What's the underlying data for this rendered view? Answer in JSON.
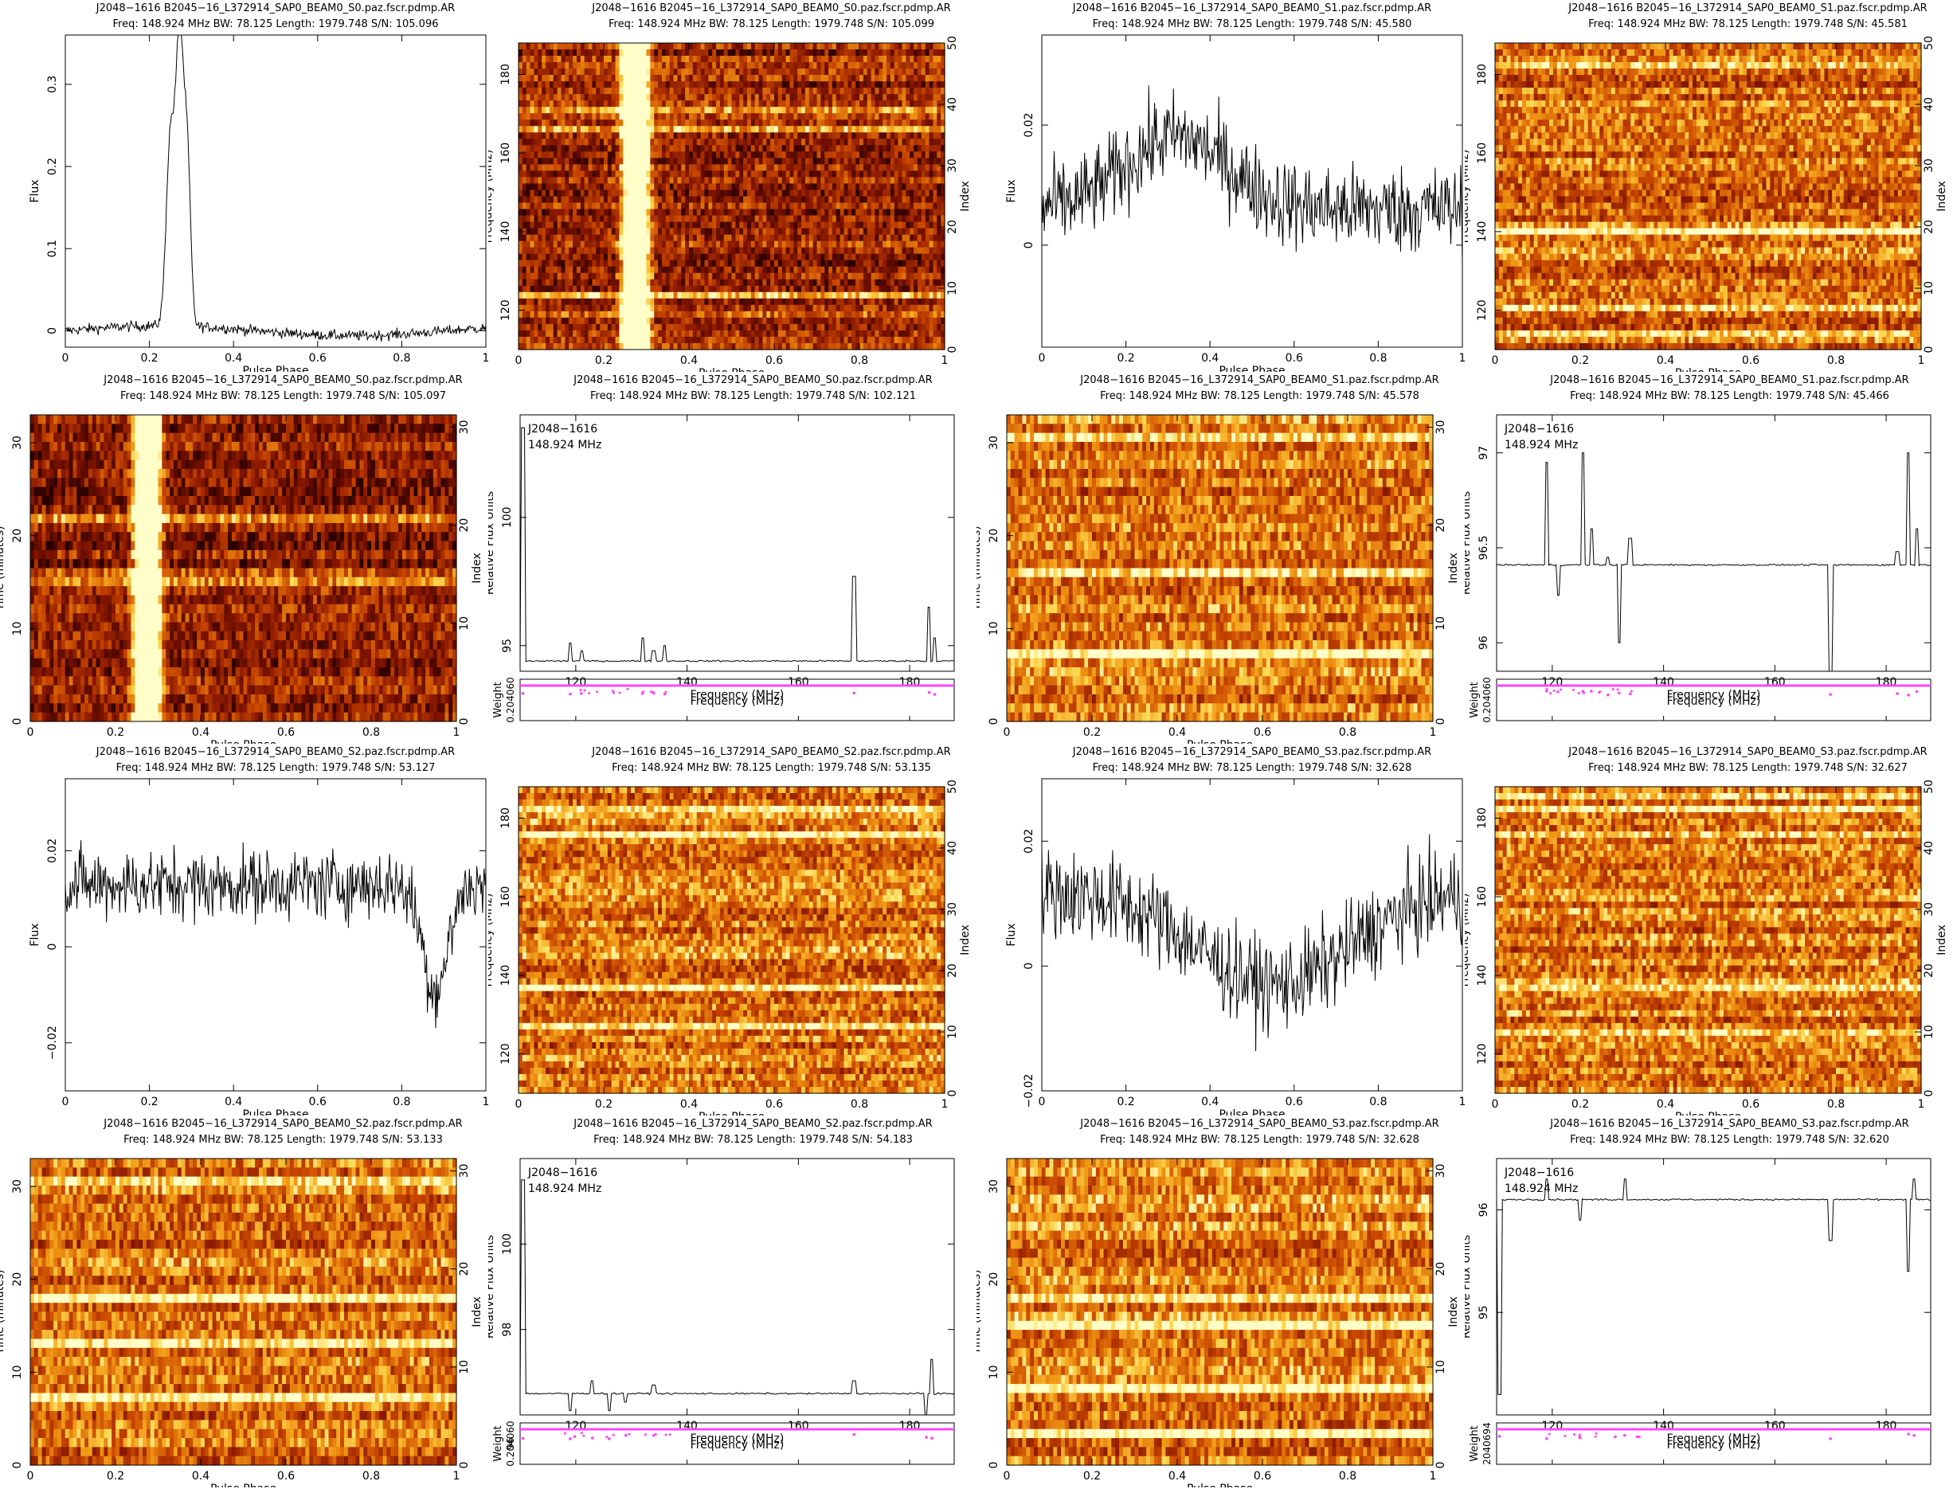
{
  "figure": {
    "source": "J2048-1616",
    "file_prefix": "B2045-16_L372914_SAP0_BEAM0",
    "freq_line": "Freq: 148.924 MHz BW: 78.125 Length: 1979.748"
  },
  "colors": {
    "line": "#000000",
    "weight_points": "#ff44ff",
    "heat_low": "#2a0000",
    "heat_mid": "#d8540a",
    "heat_high": "#fffdc0"
  },
  "chart_data": [
    {
      "id": "s0-profile",
      "type": "line",
      "title": "J2048−1616 B2045−16_L372914_SAP0_BEAM0_S0.paz.fscr.pdmp.AR",
      "subtitle": "Freq: 148.924 MHz BW: 78.125 Length: 1979.748 S/N: 105.096",
      "xlabel": "Pulse Phase",
      "ylabel": "Flux",
      "xlim": [
        0,
        1
      ],
      "ylim": [
        -0.02,
        0.36
      ],
      "xticks": [
        "0",
        "0.2",
        "0.4",
        "0.6",
        "0.8",
        "1"
      ],
      "yticks": [
        "0",
        "0.1",
        "0.2",
        "0.3"
      ],
      "profile": {
        "baseline": 0.0,
        "noise": 0.006,
        "components": [
          {
            "center": 0.25,
            "width": 0.01,
            "amp": 0.23
          },
          {
            "center": 0.272,
            "width": 0.009,
            "amp": 0.34
          },
          {
            "center": 0.29,
            "width": 0.008,
            "amp": 0.2
          }
        ]
      }
    },
    {
      "id": "s0-freq",
      "type": "heatmap",
      "title": "J2048−1616 B2045−16_L372914_SAP0_BEAM0_S0.paz.fscr.pdmp.AR",
      "subtitle": "Freq: 148.924 MHz BW: 78.125 Length: 1979.748 S/N: 105.099",
      "xlabel": "Pulse Phase",
      "ylabel": "Frequency (MHz)",
      "y2label": "Index",
      "xlim": [
        0,
        1
      ],
      "ylim": [
        110,
        188
      ],
      "xticks": [
        "0",
        "0.2",
        "0.4",
        "0.6",
        "0.8",
        "1"
      ],
      "yticks": [
        "120",
        "140",
        "160",
        "180"
      ],
      "y2ticks": [
        "0",
        "10",
        "20",
        "30",
        "40",
        "50"
      ],
      "pulse": {
        "phases": [
          0.25,
          0.272,
          0.29
        ],
        "width": 0.012
      },
      "bright_rows_fraction": [
        0.1,
        0.18,
        0.73,
        0.78
      ],
      "base_level": 0.35
    },
    {
      "id": "s1-profile",
      "type": "line",
      "title": "J2048−1616 B2045−16_L372914_SAP0_BEAM0_S1.paz.fscr.pdmp.AR",
      "subtitle": "Freq: 148.924 MHz BW: 78.125 Length: 1979.748 S/N: 45.580",
      "xlabel": "Pulse Phase",
      "ylabel": "Flux",
      "xlim": [
        0,
        1
      ],
      "ylim": [
        -0.017,
        0.035
      ],
      "xticks": [
        "0",
        "0.2",
        "0.4",
        "0.6",
        "0.8",
        "1"
      ],
      "yticks": [
        "0",
        "0.02"
      ],
      "profile": {
        "baseline": 0.006,
        "noise": 0.007,
        "components": [
          {
            "center": 0.32,
            "width": 0.12,
            "amp": 0.012
          }
        ]
      }
    },
    {
      "id": "s1-freq",
      "type": "heatmap",
      "title": "J2048−1616 B2045−16_L372914_SAP0_BEAM0_S1.paz.fscr.pdmp.AR",
      "subtitle": "Freq: 148.924 MHz BW: 78.125 Length: 1979.748 S/N: 45.581",
      "xlabel": "Pulse Phase",
      "ylabel": "Frequency (MHz)",
      "y2label": "Index",
      "xlim": [
        0,
        1
      ],
      "ylim": [
        110,
        188
      ],
      "xticks": [
        "0",
        "0.2",
        "0.4",
        "0.6",
        "0.8",
        "1"
      ],
      "yticks": [
        "120",
        "140",
        "160",
        "180"
      ],
      "y2ticks": [
        "0",
        "10",
        "20",
        "30",
        "40",
        "50"
      ],
      "pulse": {
        "phases": [],
        "width": 0.01
      },
      "bright_rows_fraction": [
        0.05,
        0.12,
        0.38,
        0.93
      ],
      "base_level": 0.6
    },
    {
      "id": "s0-time",
      "type": "heatmap",
      "title": "J2048−1616 B2045−16_L372914_SAP0_BEAM0_S0.paz.fscr.pdmp.AR",
      "subtitle": "Freq: 148.924 MHz BW: 78.125 Length: 1979.748 S/N: 105.097",
      "xlabel": "Pulse Phase",
      "ylabel": "Time (minutes)",
      "y2label": "Index",
      "xlim": [
        0,
        1
      ],
      "ylim": [
        0,
        33
      ],
      "xticks": [
        "0",
        "0.2",
        "0.4",
        "0.6",
        "0.8",
        "1"
      ],
      "yticks": [
        "0",
        "10",
        "20",
        "30"
      ],
      "y2ticks": [
        "0",
        "10",
        "20",
        "30"
      ],
      "pulse": {
        "phases": [
          0.25,
          0.272,
          0.29
        ],
        "width": 0.012
      },
      "bright_rows_fraction": [
        0.45,
        0.49,
        0.67
      ],
      "base_level": 0.3
    },
    {
      "id": "s0-bandpass",
      "type": "line",
      "title": "J2048−1616 B2045−16_L372914_SAP0_BEAM0_S0.paz.fscr.pdmp.AR",
      "subtitle": "Freq: 148.924 MHz BW: 78.125 Length: 1979.748 S/N: 102.121",
      "xlabel": "Frequency (MHz)",
      "ylabel": "Relative Flux Units",
      "weight_label": "Weight",
      "weight_ticks": [
        "0.204060"
      ],
      "annotation": [
        "J2048−1616",
        "148.924 MHz"
      ],
      "xlim": [
        110,
        188
      ],
      "ylim": [
        94,
        104
      ],
      "xticks": [
        "120",
        "140",
        "160",
        "180"
      ],
      "yticks": [
        "95",
        "100"
      ],
      "bandpass": {
        "baseline": 94.4,
        "spikes": [
          {
            "x": 110.5,
            "y": 103.5
          },
          {
            "x": 119,
            "y": 95.1
          },
          {
            "x": 121,
            "y": 94.8
          },
          {
            "x": 132,
            "y": 95.3
          },
          {
            "x": 134,
            "y": 94.8
          },
          {
            "x": 136,
            "y": 95.0
          },
          {
            "x": 170,
            "y": 97.7
          },
          {
            "x": 183.5,
            "y": 96.5
          },
          {
            "x": 184.5,
            "y": 95.3
          }
        ]
      }
    },
    {
      "id": "s1-time",
      "type": "heatmap",
      "title": "J2048−1616 B2045−16_L372914_SAP0_BEAM0_S1.paz.fscr.pdmp.AR",
      "subtitle": "Freq: 148.924 MHz BW: 78.125 Length: 1979.748 S/N: 45.578",
      "xlabel": "Pulse Phase",
      "ylabel": "Time (minutes)",
      "y2label": "Index",
      "xlim": [
        0,
        1
      ],
      "ylim": [
        0,
        33
      ],
      "xticks": [
        "0",
        "0.2",
        "0.4",
        "0.6",
        "0.8",
        "1"
      ],
      "yticks": [
        "0",
        "10",
        "20",
        "30"
      ],
      "y2ticks": [
        "0",
        "10",
        "20",
        "30"
      ],
      "pulse": {
        "phases": [],
        "width": 0.01
      },
      "bright_rows_fraction": [
        0.2,
        0.5,
        0.93
      ],
      "base_level": 0.62
    },
    {
      "id": "s1-bandpass",
      "type": "line",
      "title": "J2048−1616 B2045−16_L372914_SAP0_BEAM0_S1.paz.fscr.pdmp.AR",
      "subtitle": "Freq: 148.924 MHz BW: 78.125 Length: 1979.748 S/N: 45.466",
      "xlabel": "Frequency (MHz)",
      "ylabel": "Relative Flux Units",
      "weight_label": "Weight",
      "weight_ticks": [
        "0.204060"
      ],
      "annotation": [
        "J2048−1616",
        "148.924 MHz"
      ],
      "xlim": [
        110,
        188
      ],
      "ylim": [
        95.85,
        97.2
      ],
      "xticks": [
        "120",
        "140",
        "160",
        "180"
      ],
      "yticks": [
        "96",
        "96.5",
        "97"
      ],
      "bandpass": {
        "baseline": 96.41,
        "spikes": [
          {
            "x": 119,
            "y": 96.95
          },
          {
            "x": 121,
            "y": 96.25
          },
          {
            "x": 125.5,
            "y": 97.0
          },
          {
            "x": 127,
            "y": 96.6
          },
          {
            "x": 130,
            "y": 96.45
          },
          {
            "x": 132,
            "y": 96.0
          },
          {
            "x": 134,
            "y": 96.55
          },
          {
            "x": 170,
            "y": 95.85
          },
          {
            "x": 182,
            "y": 96.48
          },
          {
            "x": 184,
            "y": 97.0
          },
          {
            "x": 185.5,
            "y": 96.6
          }
        ]
      }
    },
    {
      "id": "s2-profile",
      "type": "line",
      "title": "J2048−1616 B2045−16_L372914_SAP0_BEAM0_S2.paz.fscr.pdmp.AR",
      "subtitle": "Freq: 148.924 MHz BW: 78.125 Length: 1979.748 S/N: 53.127",
      "xlabel": "Pulse Phase",
      "ylabel": "Flux",
      "xlim": [
        0,
        1
      ],
      "ylim": [
        -0.03,
        0.035
      ],
      "xticks": [
        "0",
        "0.2",
        "0.4",
        "0.6",
        "0.8",
        "1"
      ],
      "yticks": [
        "−0.02",
        "0",
        "0.02"
      ],
      "profile": {
        "baseline": 0.013,
        "noise": 0.007,
        "components": [
          {
            "center": 0.88,
            "width": 0.03,
            "amp": -0.022
          }
        ]
      }
    },
    {
      "id": "s2-freq",
      "type": "heatmap",
      "title": "J2048−1616 B2045−16_L372914_SAP0_BEAM0_S2.paz.fscr.pdmp.AR",
      "subtitle": "Freq: 148.924 MHz BW: 78.125 Length: 1979.748 S/N: 53.135",
      "xlabel": "Pulse Phase",
      "ylabel": "Frequency (MHz)",
      "y2label": "Index",
      "xlim": [
        0,
        1
      ],
      "ylim": [
        110,
        188
      ],
      "xticks": [
        "0",
        "0.2",
        "0.4",
        "0.6",
        "0.8",
        "1"
      ],
      "yticks": [
        "120",
        "140",
        "160",
        "180"
      ],
      "y2ticks": [
        "0",
        "10",
        "20",
        "30",
        "40",
        "50"
      ],
      "pulse": {
        "phases": [],
        "width": 0.01
      },
      "bright_rows_fraction": [
        0.22,
        0.35,
        0.85,
        0.94
      ],
      "base_level": 0.62
    },
    {
      "id": "s3-profile",
      "type": "line",
      "title": "J2048−1616 B2045−16_L372914_SAP0_BEAM0_S3.paz.fscr.pdmp.AR",
      "subtitle": "Freq: 148.924 MHz BW: 78.125 Length: 1979.748 S/N: 32.628",
      "xlabel": "Pulse Phase",
      "ylabel": "Flux",
      "xlim": [
        0,
        1
      ],
      "ylim": [
        -0.02,
        0.03
      ],
      "xticks": [
        "0",
        "0.2",
        "0.4",
        "0.6",
        "0.8",
        "1"
      ],
      "yticks": [
        "−0.02",
        "0",
        "0.02"
      ],
      "profile": {
        "baseline": 0.012,
        "noise": 0.007,
        "components": [
          {
            "center": 0.55,
            "width": 0.18,
            "amp": -0.015
          }
        ]
      }
    },
    {
      "id": "s3-freq",
      "type": "heatmap",
      "title": "J2048−1616 B2045−16_L372914_SAP0_BEAM0_S3.paz.fscr.pdmp.AR",
      "subtitle": "Freq: 148.924 MHz BW: 78.125 Length: 1979.748 S/N: 32.627",
      "xlabel": "Pulse Phase",
      "ylabel": "Frequency (MHz)",
      "y2label": "Index",
      "xlim": [
        0,
        1
      ],
      "ylim": [
        110,
        188
      ],
      "xticks": [
        "0",
        "0.2",
        "0.4",
        "0.6",
        "0.8",
        "1"
      ],
      "yticks": [
        "120",
        "140",
        "160",
        "180"
      ],
      "y2ticks": [
        "0",
        "10",
        "20",
        "30",
        "40",
        "50"
      ],
      "pulse": {
        "phases": [],
        "width": 0.01
      },
      "bright_rows_fraction": [
        0.2,
        0.33,
        0.85,
        0.93,
        0.97
      ],
      "base_level": 0.62
    },
    {
      "id": "s2-time",
      "type": "heatmap",
      "title": "J2048−1616 B2045−16_L372914_SAP0_BEAM0_S2.paz.fscr.pdmp.AR",
      "subtitle": "Freq: 148.924 MHz BW: 78.125 Length: 1979.748 S/N: 53.133",
      "xlabel": "Pulse Phase",
      "ylabel": "Time (minutes)",
      "y2label": "Index",
      "xlim": [
        0,
        1
      ],
      "ylim": [
        0,
        33
      ],
      "xticks": [
        "0",
        "0.2",
        "0.4",
        "0.6",
        "0.8",
        "1"
      ],
      "yticks": [
        "0",
        "10",
        "20",
        "30"
      ],
      "y2ticks": [
        "0",
        "10",
        "20",
        "30"
      ],
      "pulse": {
        "phases": [],
        "width": 0.01
      },
      "bright_rows_fraction": [
        0.22,
        0.39,
        0.55,
        0.95
      ],
      "base_level": 0.6
    },
    {
      "id": "s2-bandpass",
      "type": "line",
      "title": "J2048−1616 B2045−16_L372914_SAP0_BEAM0_S2.paz.fscr.pdmp.AR",
      "subtitle": "Freq: 148.924 MHz BW: 78.125 Length: 1979.748 S/N: 54.183",
      "xlabel": "Frequency (MHz)",
      "ylabel": "Relative Flux Units",
      "weight_label": "Weight",
      "weight_ticks": [
        "0.204060",
        "96"
      ],
      "annotation": [
        "J2048−1616",
        "148.924 MHz"
      ],
      "xlim": [
        110,
        188
      ],
      "ylim": [
        96,
        102
      ],
      "xticks": [
        "120",
        "140",
        "160",
        "180"
      ],
      "yticks": [
        "98",
        "100"
      ],
      "bandpass": {
        "baseline": 96.5,
        "spikes": [
          {
            "x": 110.5,
            "y": 101.5
          },
          {
            "x": 119,
            "y": 96.1
          },
          {
            "x": 123,
            "y": 96.8
          },
          {
            "x": 126,
            "y": 96.1
          },
          {
            "x": 129,
            "y": 96.3
          },
          {
            "x": 134,
            "y": 96.7
          },
          {
            "x": 170,
            "y": 96.8
          },
          {
            "x": 183,
            "y": 96.0
          },
          {
            "x": 184,
            "y": 97.3
          }
        ]
      }
    },
    {
      "id": "s3-time",
      "type": "heatmap",
      "title": "J2048−1616 B2045−16_L372914_SAP0_BEAM0_S3.paz.fscr.pdmp.AR",
      "subtitle": "Freq: 148.924 MHz BW: 78.125 Length: 1979.748 S/N: 32.628",
      "xlabel": "Pulse Phase",
      "ylabel": "Time (minutes)",
      "y2label": "Index",
      "xlim": [
        0,
        1
      ],
      "ylim": [
        0,
        33
      ],
      "xticks": [
        "0",
        "0.2",
        "0.4",
        "0.6",
        "0.8",
        "1"
      ],
      "yticks": [
        "0",
        "10",
        "20",
        "30"
      ],
      "y2ticks": [
        "0",
        "10",
        "20",
        "30"
      ],
      "pulse": {
        "phases": [],
        "width": 0.01
      },
      "bright_rows_fraction": [
        0.1,
        0.24,
        0.45,
        0.55
      ],
      "base_level": 0.65
    },
    {
      "id": "s3-bandpass",
      "type": "line",
      "title": "J2048−1616 B2045−16_L372914_SAP0_BEAM0_S3.paz.fscr.pdmp.AR",
      "subtitle": "Freq: 148.924 MHz BW: 78.125 Length: 1979.748 S/N: 32.620",
      "xlabel": "Frequency (MHz)",
      "ylabel": "Relative Flux Units",
      "weight_label": "Weight",
      "weight_ticks": [
        "2040694"
      ],
      "annotation": [
        "J2048−1616",
        "148.924 MHz"
      ],
      "xlim": [
        110,
        188
      ],
      "ylim": [
        94,
        96.5
      ],
      "xticks": [
        "120",
        "140",
        "160",
        "180"
      ],
      "yticks": [
        "95",
        "96"
      ],
      "bandpass": {
        "baseline": 96.1,
        "spikes": [
          {
            "x": 110.5,
            "y": 94.2
          },
          {
            "x": 119,
            "y": 96.3
          },
          {
            "x": 125,
            "y": 95.9
          },
          {
            "x": 133,
            "y": 96.3
          },
          {
            "x": 170,
            "y": 95.7
          },
          {
            "x": 184,
            "y": 95.4
          },
          {
            "x": 185,
            "y": 96.3
          }
        ]
      }
    }
  ]
}
